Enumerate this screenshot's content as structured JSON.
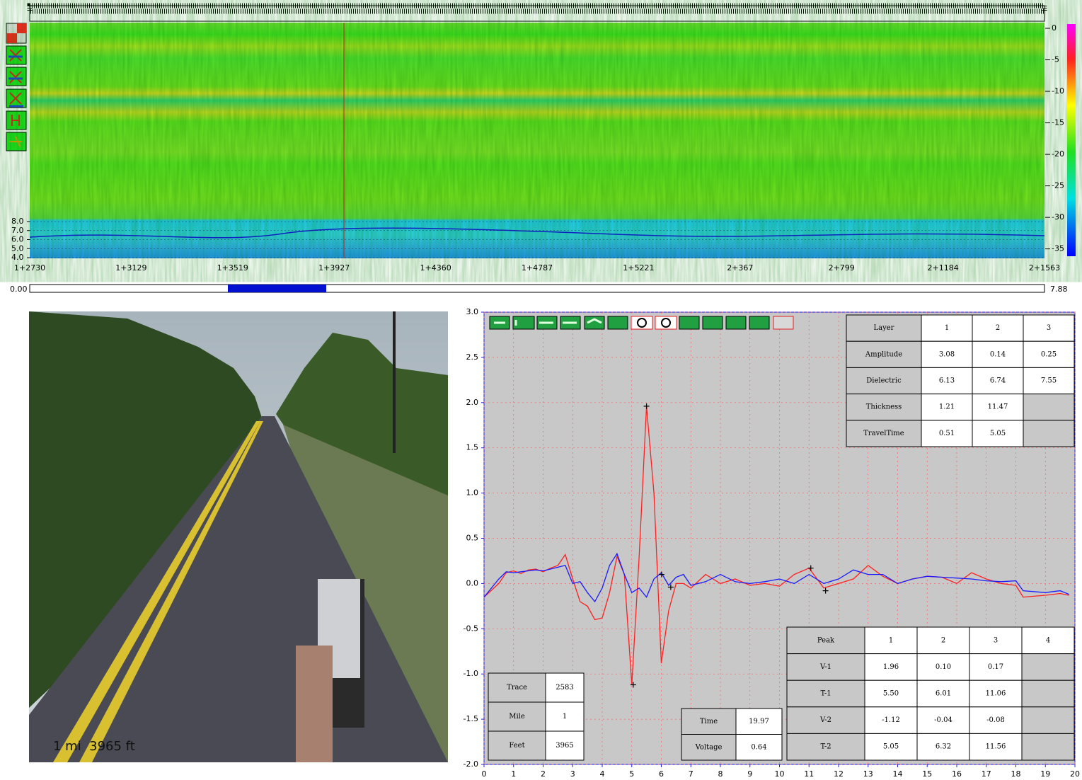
{
  "chart_data": [
    {
      "type": "radargram",
      "categories": [
        "1+2730",
        "1+3129",
        "1+3519",
        "1+3927",
        "1+4360",
        "1+4787",
        "1+5221",
        "2+367",
        "2+799",
        "2+1184",
        "2+1563"
      ],
      "ylim": [
        4.0,
        8.0
      ],
      "yticks": [
        {
          "value": 4,
          "label": "4.0"
        },
        {
          "value": 5,
          "label": "5.0"
        },
        {
          "value": 6,
          "label": "6.0"
        },
        {
          "value": 7,
          "label": "7.0"
        },
        {
          "value": 8,
          "label": "8.0"
        }
      ],
      "y2lim": [
        -36.5,
        0.9
      ],
      "y2ticks": [
        0,
        -5,
        -10,
        -15,
        -20,
        -25,
        -30,
        -35
      ]
    },
    {
      "type": "line",
      "x": [
        0,
        0.5,
        0.75,
        1,
        1.25,
        1.5,
        1.75,
        2,
        2.25,
        2.5,
        2.75,
        3,
        3.25,
        3.5,
        3.75,
        4,
        4.25,
        4.5,
        4.75,
        5,
        5.25,
        5.5,
        5.75,
        6,
        6.25,
        6.5,
        6.75,
        7,
        7.5,
        8,
        8.5,
        9,
        9.5,
        10,
        10.5,
        11,
        11.5,
        12,
        12.5,
        13,
        13.5,
        14,
        14.5,
        15,
        15.5,
        16,
        16.5,
        17,
        17.5,
        18,
        18.25,
        19,
        19.5,
        19.8
      ],
      "series": [
        {
          "color": "#ff2020",
          "values": [
            -0.15,
            0.0,
            0.12,
            0.14,
            0.11,
            0.15,
            0.16,
            0.13,
            0.17,
            0.2,
            0.32,
            0.05,
            -0.2,
            -0.25,
            -0.4,
            -0.38,
            -0.1,
            0.3,
            0.1,
            -1.12,
            0.3,
            1.96,
            1.0,
            -0.88,
            -0.3,
            0.0,
            0.0,
            -0.05,
            0.1,
            0.0,
            0.05,
            -0.02,
            0.0,
            -0.03,
            0.1,
            0.17,
            -0.05,
            0.0,
            0.05,
            0.2,
            0.08,
            0.0,
            0.05,
            0.08,
            0.07,
            0.0,
            0.12,
            0.05,
            0.0,
            -0.02,
            -0.15,
            -0.13,
            -0.11,
            -0.13
          ]
        },
        {
          "color": "#1a1aff",
          "values": [
            -0.15,
            0.05,
            0.13,
            0.12,
            0.13,
            0.14,
            0.15,
            0.14,
            0.16,
            0.18,
            0.2,
            0.0,
            0.02,
            -0.1,
            -0.2,
            -0.05,
            0.2,
            0.33,
            0.1,
            -0.1,
            -0.05,
            -0.15,
            0.05,
            0.12,
            -0.02,
            0.07,
            0.1,
            -0.02,
            0.02,
            0.1,
            0.02,
            0.0,
            0.02,
            0.05,
            0.0,
            0.1,
            0.0,
            0.05,
            0.15,
            0.1,
            0.1,
            0.0,
            0.05,
            0.08,
            0.07,
            0.06,
            0.05,
            0.03,
            0.02,
            0.03,
            -0.08,
            -0.1,
            -0.08,
            -0.12
          ]
        }
      ],
      "xlim": [
        0,
        20
      ],
      "xticks": [
        0,
        1,
        2,
        3,
        4,
        5,
        6,
        7,
        8,
        9,
        10,
        11,
        12,
        13,
        14,
        15,
        16,
        17,
        18,
        19,
        20
      ],
      "ylim": [
        -2.0,
        3.0
      ],
      "yticks": [
        {
          "value": -2,
          "label": "-2.0"
        },
        {
          "value": -1.5,
          "label": "-1.5"
        },
        {
          "value": -1,
          "label": "-1.0"
        },
        {
          "value": -0.5,
          "label": "-0.5"
        },
        {
          "value": 0,
          "label": "0.0"
        },
        {
          "value": 0.5,
          "label": "0.5"
        },
        {
          "value": 1,
          "label": "1.0"
        },
        {
          "value": 1.5,
          "label": "1.5"
        },
        {
          "value": 2,
          "label": "2.0"
        },
        {
          "value": 2.5,
          "label": "2.5"
        },
        {
          "value": 3,
          "label": "3.0"
        }
      ],
      "grid": true
    }
  ],
  "slider": {
    "min_label": "0.00",
    "max_label": "7.88"
  },
  "photo": {
    "caption": "1 mi  3965 ft"
  },
  "layer_table": {
    "header": [
      "Layer",
      "1",
      "2",
      "3"
    ],
    "rows": [
      [
        "Amplitude",
        "3.08",
        "0.14",
        "0.25"
      ],
      [
        "Dielectric",
        "6.13",
        "6.74",
        "7.55"
      ],
      [
        "Thickness",
        "1.21",
        "11.47",
        null
      ],
      [
        "TravelTime",
        "0.51",
        "5.05",
        null
      ]
    ]
  },
  "peak_table": {
    "header": [
      "Peak",
      "1",
      "2",
      "3",
      "4"
    ],
    "rows": [
      [
        "V-1",
        "1.96",
        "0.10",
        "0.17",
        null
      ],
      [
        "T-1",
        "5.50",
        "6.01",
        "11.06",
        null
      ],
      [
        "V-2",
        "-1.12",
        "-0.04",
        "-0.08",
        null
      ],
      [
        "T-2",
        "5.05",
        "6.32",
        "11.56",
        null
      ]
    ]
  },
  "position_table": {
    "rows": [
      [
        "Trace",
        "2583"
      ],
      [
        "Mile",
        "1"
      ],
      [
        "Feet",
        "3965"
      ]
    ]
  },
  "cursor_table": {
    "rows": [
      [
        "Time",
        "19.97"
      ],
      [
        "Voltage",
        "0.64"
      ]
    ]
  }
}
